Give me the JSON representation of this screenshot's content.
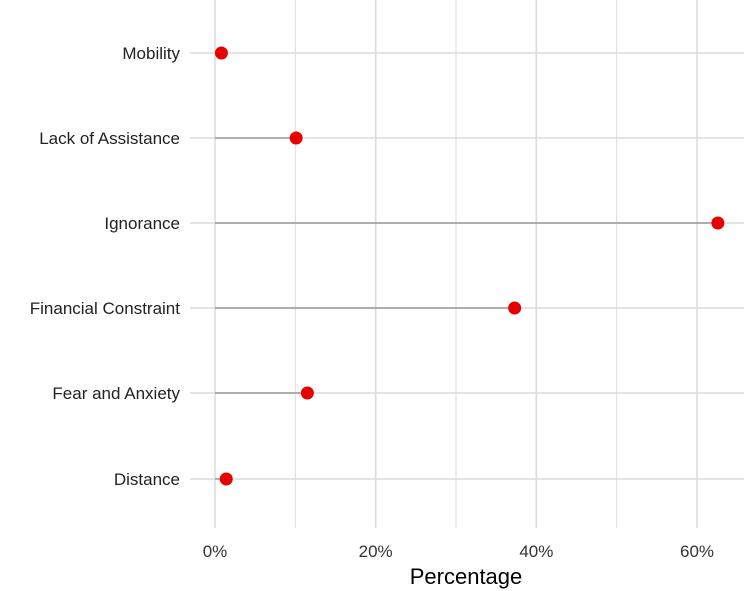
{
  "chart_data": {
    "type": "lollipop",
    "title": "",
    "xlabel": "Percentage",
    "ylabel": "",
    "categories": [
      "Mobility",
      "Lack of Assistance",
      "Ignorance",
      "Financial Constraint",
      "Fear and Anxiety",
      "Distance"
    ],
    "values": [
      0.8,
      10.1,
      62.6,
      37.3,
      11.5,
      1.4
    ],
    "xlim": [
      0,
      65
    ],
    "x_ticks": [
      0,
      20,
      40,
      60
    ],
    "x_tick_labels": [
      "0%",
      "20%",
      "40%",
      "60%"
    ],
    "grid": true,
    "point_color": "#e60000",
    "stem_color": "#9a9a9a",
    "grid_color": "#dcdcdc"
  }
}
